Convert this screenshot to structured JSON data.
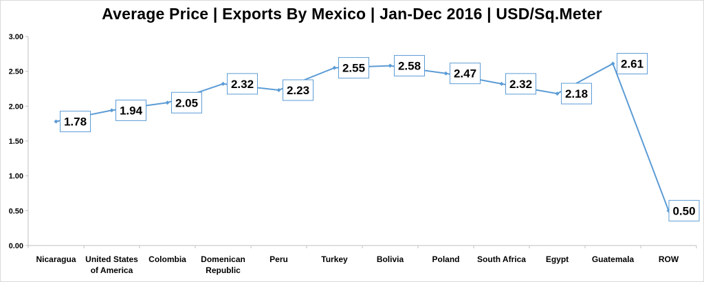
{
  "chart_data": {
    "type": "line",
    "title": "Average Price  |  Exports By Mexico  |  Jan-Dec 2016  |  USD/Sq.Meter",
    "xlabel": "",
    "ylabel": "",
    "categories": [
      [
        "Nicaragua"
      ],
      [
        "United States",
        "of America"
      ],
      [
        "Colombia"
      ],
      [
        "Domenican",
        "Republic"
      ],
      [
        "Peru"
      ],
      [
        "Turkey"
      ],
      [
        "Bolivia"
      ],
      [
        "Poland"
      ],
      [
        "South Africa"
      ],
      [
        "Egypt"
      ],
      [
        "Guatemala"
      ],
      [
        "ROW"
      ]
    ],
    "values": [
      1.78,
      1.94,
      2.05,
      2.32,
      2.23,
      2.55,
      2.58,
      2.47,
      2.32,
      2.18,
      2.61,
      0.5
    ],
    "data_labels": [
      "1.78",
      "1.94",
      "2.05",
      "2.32",
      "2.23",
      "2.55",
      "2.58",
      "2.47",
      "2.32",
      "2.18",
      "2.61",
      "0.50"
    ],
    "yticks": [
      "0.00",
      "0.50",
      "1.00",
      "1.50",
      "2.00",
      "2.50",
      "3.00"
    ],
    "ylim": [
      0,
      3
    ],
    "grid": false,
    "legend": "none",
    "line_color": "#5b9bd5",
    "label_border_color": "#5b9bd5"
  }
}
